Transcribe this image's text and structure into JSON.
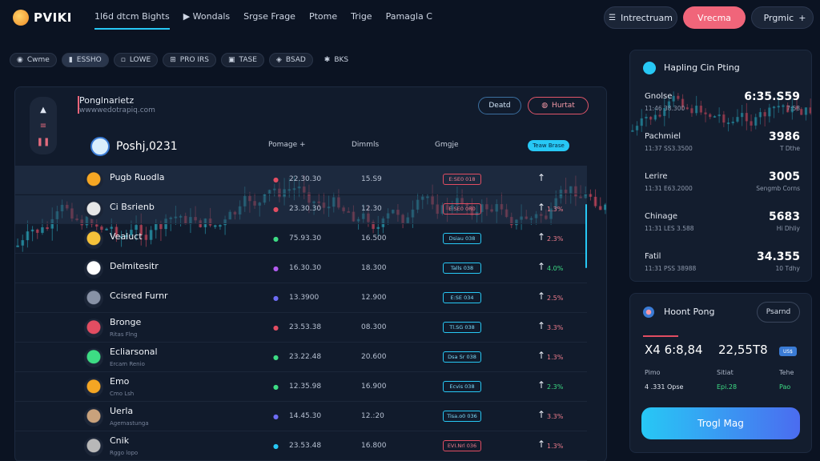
{
  "app": {
    "name": "PVIKI"
  },
  "nav": [
    "1l6d dtcm Bights",
    "Wondals",
    "Srgse Frage",
    "Ptome",
    "Trige",
    "Pamagla C"
  ],
  "top_right": {
    "btn1": "Intrectruam",
    "btn2": "Vrecma",
    "btn3": "Prgmic"
  },
  "chips": [
    "Cwme",
    "ESSHO",
    "LOWE",
    "PRO IRS",
    "TASE",
    "BSAD",
    "BKS"
  ],
  "panel": {
    "title": "Ponglnarietz",
    "subtitle": "wwwwedotrapiq.com",
    "detail_btn": "Deatd",
    "alert_btn": "Hurtat",
    "header": {
      "name": "Poshj,0231",
      "col1": "Pomage",
      "col2": "Dimmls",
      "col3": "Gmgje",
      "badge": "Teaw Brase"
    },
    "rows": [
      {
        "name": "Pugb Ruodla",
        "sub": "",
        "p1": "22.30.30",
        "p2": "15.S9",
        "tag": "E:SE0 018",
        "tag_color": "red",
        "chg": "",
        "chg_color": "#f07d8d",
        "dot_color": "#e24d62",
        "avatar_color": "#f5a623"
      },
      {
        "name": "Ci Bsrienb",
        "sub": "",
        "p1": "23.30.30",
        "p2": "12.30",
        "tag": "E:SE0 0R0",
        "tag_color": "red",
        "chg": "1.3%",
        "chg_color": "#f07d8d",
        "dot_color": "#e24d62",
        "avatar_color": "#e6e6e6"
      },
      {
        "name": "Vealuct",
        "sub": "",
        "p1": "75.93.30",
        "p2": "16.500",
        "tag": "Dsiau 038",
        "tag_color": "blue",
        "chg": "2.3%",
        "chg_color": "#f07d8d",
        "dot_color": "#3ddc84",
        "avatar_color": "#f5c23a"
      },
      {
        "name": "Delmitesitr",
        "sub": "",
        "p1": "16.30.30",
        "p2": "18.300",
        "tag": "Talls 038",
        "tag_color": "blue",
        "chg": "4.0%",
        "chg_color": "#3ddc84",
        "dot_color": "#b25cf0",
        "avatar_color": "#ffffff"
      },
      {
        "name": "Ccisred Furnr",
        "sub": "",
        "p1": "13.3900",
        "p2": "12.900",
        "tag": "E:SE 034",
        "tag_color": "blue",
        "chg": "2.5%",
        "chg_color": "#f07d8d",
        "dot_color": "#6d6cf5",
        "avatar_color": "#8892a6"
      },
      {
        "name": "Bronge",
        "sub": "Ritas Flng",
        "p1": "23.53.38",
        "p2": "08.300",
        "tag": "Tl.SG 038",
        "tag_color": "blue",
        "chg": "3.3%",
        "chg_color": "#f07d8d",
        "dot_color": "#e24d62",
        "avatar_color": "#e24d62"
      },
      {
        "name": "Ecliarsonal",
        "sub": "Ercam Renio",
        "p1": "23.22.48",
        "p2": "20.600",
        "tag": "Dsa Sr 038",
        "tag_color": "blue",
        "chg": "1.3%",
        "chg_color": "#f07d8d",
        "dot_color": "#3ddc84",
        "avatar_color": "#3ddc84"
      },
      {
        "name": "Emo",
        "sub": "Cmo Lsh",
        "p1": "12.35.98",
        "p2": "16.900",
        "tag": "Ecvis 038",
        "tag_color": "blue",
        "chg": "2.3%",
        "chg_color": "#3ddc84",
        "dot_color": "#3ddc84",
        "avatar_color": "#f5a623"
      },
      {
        "name": "Uerla",
        "sub": "Agemastunga",
        "p1": "14.45.30",
        "p2": "12.:20",
        "tag": "Tisa.o0 036",
        "tag_color": "blue",
        "chg": "3.3%",
        "chg_color": "#f07d8d",
        "dot_color": "#6d6cf5",
        "avatar_color": "#c9a27c"
      },
      {
        "name": "Cnik",
        "sub": "Rggo lopo",
        "p1": "23.53.48",
        "p2": "16.800",
        "tag": "EVI.Nrl 036",
        "tag_color": "red",
        "chg": "1.3%",
        "chg_color": "#f07d8d",
        "dot_color": "#27c8f5",
        "avatar_color": "#b8b8b8"
      }
    ]
  },
  "stats": {
    "title": "Hapling Cin Pting",
    "items": [
      {
        "label": "Gnolse",
        "sub": "11:46 38.300",
        "value": "6:35.S59",
        "unit": "7:58"
      },
      {
        "label": "Pachmiel",
        "sub": "11:37 SS3.3500",
        "value": "3986",
        "unit": "T Dthe"
      },
      {
        "label": "Lerire",
        "sub": "11:31 E63.2000",
        "value": "3005",
        "unit": "Sengmb Corns"
      },
      {
        "label": "Chinage",
        "sub": "11:31 LES 3.588",
        "value": "5683",
        "unit": "Hi Dhliy"
      },
      {
        "label": "Fatil",
        "sub": "11:31 PSS 38988",
        "value": "34.355",
        "unit": "10 Tdhy"
      }
    ]
  },
  "trade": {
    "title": "Hoont Pong",
    "btn": "Psarnd",
    "big1": "X4 6:8,84",
    "big2": "22,55T8",
    "badge": "US$",
    "labels": [
      "Pimo",
      "Sitiat",
      "Tehe"
    ],
    "values": [
      {
        "text": "4 .331 Opse",
        "color": "#e3e8f1"
      },
      {
        "text": "Epi.28",
        "color": "#3ddc84"
      },
      {
        "text": "Pao",
        "color": "#3ddc84"
      }
    ],
    "cta": "Trogl Mag"
  },
  "colors": {
    "accent": "#27c8f5",
    "red": "#f0657a",
    "green": "#3ddc84",
    "bg": "#0b1322"
  }
}
